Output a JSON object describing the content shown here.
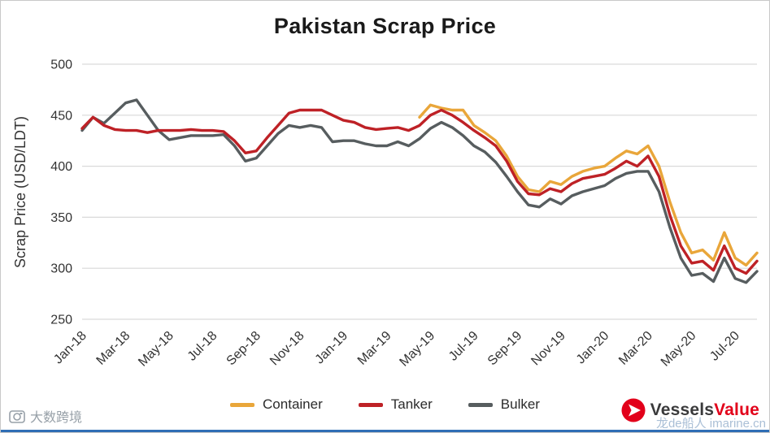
{
  "title": "Pakistan Scrap Price",
  "y_axis": {
    "label": "Scrap Price (USD/LDT)"
  },
  "chart_data": {
    "type": "line",
    "title": "Pakistan Scrap Price",
    "xlabel": "",
    "ylabel": "Scrap Price (USD/LDT)",
    "ylim": [
      250,
      500
    ],
    "y_ticks": [
      250,
      300,
      350,
      400,
      450,
      500
    ],
    "grid": "horizontal",
    "legend_position": "bottom",
    "x_unit": "months since Jan-2018, one data point every 0.5 month",
    "x_step_months": 0.5,
    "x_months_span": 31,
    "x_tick_months": [
      0,
      2,
      4,
      6,
      8,
      10,
      12,
      14,
      16,
      18,
      20,
      22,
      24,
      26,
      28,
      30
    ],
    "x_tick_labels": [
      "Jan-18",
      "Mar-18",
      "May-18",
      "Jul-18",
      "Sep-18",
      "Nov-18",
      "Jan-19",
      "Mar-19",
      "May-19",
      "Jul-19",
      "Sep-19",
      "Nov-19",
      "Jan-20",
      "Mar-20",
      "May-20",
      "Jul-20"
    ],
    "series": [
      {
        "name": "Bulker",
        "color": "#575d5f",
        "values": [
          435,
          448,
          442,
          452,
          462,
          465,
          450,
          435,
          426,
          428,
          430,
          430,
          430,
          431,
          420,
          405,
          408,
          420,
          432,
          440,
          438,
          440,
          438,
          424,
          425,
          425,
          422,
          420,
          420,
          424,
          420,
          427,
          437,
          443,
          438,
          430,
          420,
          414,
          404,
          390,
          375,
          362,
          360,
          368,
          363,
          371,
          375,
          378,
          381,
          388,
          393,
          395,
          395,
          375,
          340,
          310,
          293,
          295,
          287,
          310,
          290,
          286,
          297
        ]
      },
      {
        "name": "Container",
        "color": "#e9a63a",
        "values": [
          null,
          null,
          null,
          null,
          null,
          null,
          null,
          null,
          null,
          null,
          null,
          null,
          null,
          null,
          null,
          null,
          null,
          null,
          null,
          null,
          null,
          null,
          null,
          null,
          null,
          null,
          null,
          null,
          null,
          null,
          null,
          448,
          460,
          457,
          455,
          455,
          440,
          433,
          425,
          410,
          390,
          377,
          375,
          385,
          382,
          390,
          395,
          398,
          400,
          408,
          415,
          412,
          420,
          400,
          365,
          335,
          315,
          318,
          308,
          335,
          310,
          303,
          315
        ]
      },
      {
        "name": "Tanker",
        "color": "#be2126",
        "values": [
          437,
          448,
          440,
          436,
          435,
          435,
          433,
          435,
          435,
          435,
          436,
          435,
          435,
          434,
          425,
          413,
          415,
          428,
          440,
          452,
          455,
          455,
          455,
          450,
          445,
          443,
          438,
          436,
          437,
          438,
          435,
          440,
          450,
          455,
          450,
          443,
          435,
          428,
          420,
          405,
          385,
          373,
          372,
          378,
          375,
          383,
          388,
          390,
          392,
          398,
          405,
          400,
          410,
          390,
          352,
          322,
          305,
          307,
          298,
          322,
          300,
          295,
          307
        ]
      }
    ]
  },
  "legend": [
    {
      "label": "Container",
      "color": "#e9a63a"
    },
    {
      "label": "Tanker",
      "color": "#be2126"
    },
    {
      "label": "Bulker",
      "color": "#575d5f"
    }
  ],
  "branding": {
    "name_part1": "Vessels",
    "name_part2": "Value",
    "color_part1": "#3a3a3b",
    "color_part2": "#e2001a"
  },
  "watermarks": {
    "bottom_left_text": "大数跨境",
    "bottom_right_text": "龙de船人 imarine.cn"
  }
}
